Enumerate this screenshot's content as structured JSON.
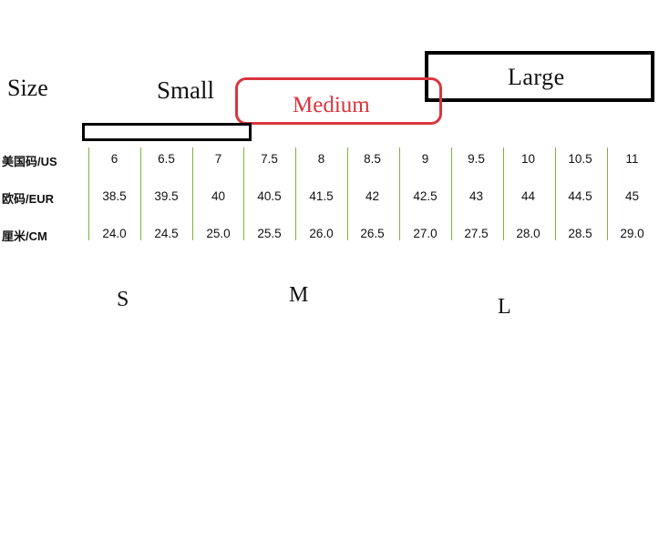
{
  "headers": {
    "size": "Size",
    "small": "Small",
    "medium": "Medium",
    "large": "Large"
  },
  "rows": [
    {
      "label": "美国码/US",
      "values": [
        "6",
        "6.5",
        "7",
        "7.5",
        "8",
        "8.5",
        "9",
        "9.5",
        "10",
        "10.5",
        "11"
      ]
    },
    {
      "label": "欧码/EUR",
      "values": [
        "38.5",
        "39.5",
        "40",
        "40.5",
        "41.5",
        "42",
        "42.5",
        "43",
        "44",
        "44.5",
        "45"
      ]
    },
    {
      "label": "厘米/CM",
      "values": [
        "24.0",
        "24.5",
        "25.0",
        "25.5",
        "26.0",
        "26.5",
        "27.0",
        "27.5",
        "28.0",
        "28.5",
        "29.0"
      ]
    }
  ],
  "bottom_labels": {
    "s": "S",
    "m": "M",
    "l": "L"
  },
  "colors": {
    "medium_accent": "#d9363e",
    "column_divider": "#7cb342"
  }
}
